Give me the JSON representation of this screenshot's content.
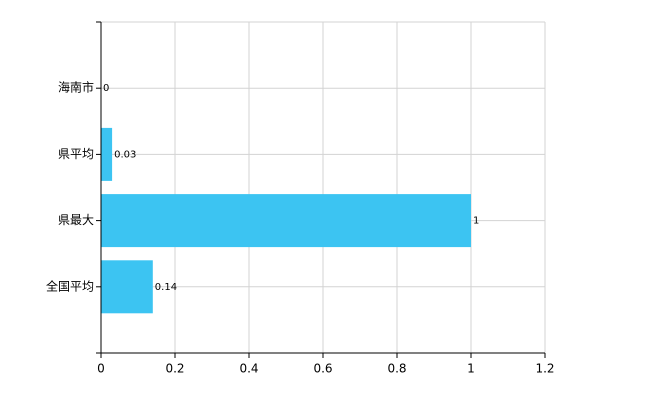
{
  "chart_data": {
    "type": "barh",
    "categories": [
      "海南市",
      "県平均",
      "県最大",
      "全国平均"
    ],
    "values": [
      0,
      0.03,
      1,
      0.14
    ],
    "color": "#3cc4f2",
    "xlim": [
      0,
      1.2
    ],
    "xticks": [
      0,
      0.2,
      0.4,
      0.6,
      0.8,
      1,
      1.2
    ],
    "grid": true
  }
}
